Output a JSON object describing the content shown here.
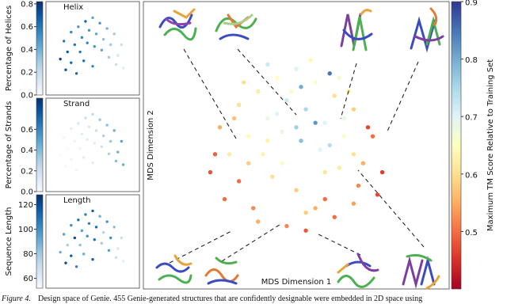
{
  "chart_data": [
    {
      "type": "scatter",
      "title": "Helix",
      "colorbar_label": "Percentage of Helices",
      "colormap": "Blues",
      "xlim": [
        -1.3,
        1.3
      ],
      "ylim": [
        -1.3,
        1.3
      ],
      "clim": [
        0,
        0.82
      ],
      "cticks": [
        {
          "value": 0,
          "label": "0.0"
        },
        0.2,
        0.4,
        0.6,
        0.8
      ],
      "x": [
        -0.8,
        -0.6,
        -0.4,
        -0.2,
        0,
        0.2,
        0.4,
        0.6,
        0.8,
        -0.7,
        -0.5,
        -0.3,
        -0.1,
        0.1,
        0.3,
        0.5,
        0.7,
        -0.9,
        -0.6,
        -0.35,
        -0.15,
        0.05,
        0.25,
        0.45,
        0.65,
        0.85,
        -0.75,
        -0.45,
        -0.25,
        0
      ],
      "y": [
        0.2,
        0.45,
        0.6,
        0.75,
        0.85,
        0.7,
        0.55,
        0.4,
        0.1,
        -0.1,
        0.1,
        0.3,
        0.5,
        0.4,
        0.25,
        0.1,
        -0.2,
        -0.3,
        -0.4,
        -0.1,
        0.15,
        0.05,
        -0.05,
        -0.25,
        -0.45,
        -0.55,
        -0.6,
        -0.7,
        -0.35,
        -0.5
      ],
      "values": [
        0.6,
        0.55,
        0.5,
        0.65,
        0.45,
        0.5,
        0.4,
        0.3,
        0.2,
        0.7,
        0.6,
        0.55,
        0.5,
        0.45,
        0.35,
        0.3,
        0.15,
        0.75,
        0.65,
        0.6,
        0.55,
        0.5,
        0.45,
        0.3,
        0.2,
        0.1,
        0.7,
        0.65,
        0.6,
        0.55
      ]
    },
    {
      "type": "scatter",
      "title": "Strand",
      "colorbar_label": "Percentage of Strands",
      "colormap": "Blues",
      "xlim": [
        -1.3,
        1.3
      ],
      "ylim": [
        -1.3,
        1.3
      ],
      "clim": [
        0,
        0.9
      ],
      "cticks": [
        {
          "value": 0,
          "label": "0.0"
        },
        0.2,
        0.4,
        0.6
      ],
      "x": [
        -0.8,
        -0.6,
        -0.4,
        -0.2,
        0,
        0.2,
        0.4,
        0.6,
        0.8,
        -0.7,
        -0.5,
        -0.3,
        -0.1,
        0.1,
        0.3,
        0.5,
        0.7,
        -0.9,
        -0.6,
        -0.35,
        -0.15,
        0.05,
        0.25,
        0.45,
        0.65,
        0.85,
        -0.75,
        -0.45,
        -0.25,
        0
      ],
      "y": [
        0.2,
        0.45,
        0.6,
        0.75,
        0.85,
        0.7,
        0.55,
        0.4,
        0.1,
        -0.1,
        0.1,
        0.3,
        0.5,
        0.4,
        0.25,
        0.1,
        -0.2,
        -0.3,
        -0.4,
        -0.1,
        0.15,
        0.05,
        -0.05,
        -0.25,
        -0.45,
        -0.55,
        -0.6,
        -0.7,
        -0.35,
        -0.5
      ],
      "values": [
        0.05,
        0.1,
        0.15,
        0.2,
        0.25,
        0.35,
        0.4,
        0.45,
        0.5,
        0.0,
        0.05,
        0.1,
        0.15,
        0.2,
        0.3,
        0.35,
        0.45,
        0.0,
        0.05,
        0.05,
        0.1,
        0.1,
        0.2,
        0.3,
        0.4,
        0.45,
        0.02,
        0.05,
        0.1,
        0.1
      ]
    },
    {
      "type": "scatter",
      "title": "Length",
      "colorbar_label": "Sequence Length",
      "colormap": "Blues",
      "xlim": [
        -1.3,
        1.3
      ],
      "ylim": [
        -1.3,
        1.3
      ],
      "clim": [
        52,
        128
      ],
      "cticks": [
        60,
        80,
        100,
        120
      ],
      "x": [
        -0.8,
        -0.6,
        -0.4,
        -0.2,
        0,
        0.2,
        0.4,
        0.6,
        0.8,
        -0.7,
        -0.5,
        -0.3,
        -0.1,
        0.1,
        0.3,
        0.5,
        0.7,
        -0.9,
        -0.6,
        -0.35,
        -0.15,
        0.05,
        0.25,
        0.45,
        0.65,
        0.85,
        -0.75,
        -0.45,
        -0.25,
        0
      ],
      "y": [
        0.2,
        0.45,
        0.6,
        0.75,
        0.85,
        0.7,
        0.55,
        0.4,
        0.1,
        -0.1,
        0.1,
        0.3,
        0.5,
        0.4,
        0.25,
        0.1,
        -0.2,
        -0.3,
        -0.4,
        -0.1,
        0.15,
        0.05,
        -0.05,
        -0.25,
        -0.45,
        -0.55,
        -0.6,
        -0.7,
        -0.35,
        -0.5
      ],
      "values": [
        95,
        100,
        110,
        105,
        115,
        90,
        100,
        85,
        70,
        80,
        120,
        95,
        105,
        110,
        75,
        100,
        65,
        90,
        115,
        85,
        100,
        110,
        80,
        95,
        70,
        60,
        120,
        105,
        90,
        115
      ]
    },
    {
      "type": "scatter",
      "xlabel": "MDS Dimension 1",
      "ylabel": "MDS Dimension 2",
      "colorbar_label": "Maximum TM Score Relative to Training Set",
      "colormap": "RdYlBu",
      "xlim": [
        -1.6,
        1.6
      ],
      "ylim": [
        -1.6,
        1.6
      ],
      "clim": [
        0.4,
        0.9
      ],
      "cticks": [
        0.5,
        0.6,
        0.7,
        0.8,
        0.9
      ],
      "x": [
        -0.8,
        -0.6,
        -0.4,
        -0.2,
        0,
        0.2,
        0.4,
        0.6,
        0.8,
        -0.7,
        -0.5,
        -0.3,
        -0.1,
        0.1,
        0.3,
        0.5,
        0.7,
        -0.9,
        -0.6,
        -0.35,
        -0.15,
        0.05,
        0.25,
        0.45,
        0.65,
        0.85,
        -0.75,
        -0.45,
        -0.25,
        0,
        0.2,
        0.4,
        0.6,
        -0.55,
        -0.3,
        -0.05,
        0.15,
        0.35,
        0.55,
        -0.4,
        -0.1,
        0.1,
        0.3,
        -0.2,
        0.05,
        0.5,
        -0.65,
        0.75,
        0.9,
        -0.85,
        0.1,
        -0.15,
        0.35,
        0.6,
        -0.5,
        0.2,
        0,
        -0.3,
        0.45,
        0.3
      ],
      "y": [
        0.2,
        0.45,
        0.6,
        0.75,
        0.85,
        0.7,
        0.55,
        0.4,
        0.1,
        -0.1,
        0.1,
        0.3,
        0.5,
        0.4,
        0.25,
        0.1,
        -0.2,
        -0.3,
        -0.4,
        -0.1,
        0.15,
        0.05,
        -0.05,
        -0.25,
        -0.45,
        -0.55,
        -0.6,
        -0.7,
        -0.35,
        -0.5,
        -0.7,
        -0.8,
        -0.65,
        0.7,
        0.9,
        0.6,
        0.95,
        0.8,
        0.6,
        -0.85,
        -0.9,
        -0.75,
        -0.6,
        0.35,
        0.65,
        0.3,
        0.3,
        0.2,
        -0.3,
        -0.1,
        -0.95,
        -0.2,
        0.0,
        -0.1,
        -0.2,
        0.25,
        0.2,
        0.05,
        0.75,
        -0.3
      ],
      "values": [
        0.55,
        0.6,
        0.62,
        0.65,
        0.7,
        0.66,
        0.6,
        0.58,
        0.5,
        0.62,
        0.64,
        0.68,
        0.72,
        0.75,
        0.7,
        0.66,
        0.55,
        0.48,
        0.5,
        0.63,
        0.68,
        0.78,
        0.7,
        0.62,
        0.52,
        0.47,
        0.5,
        0.52,
        0.6,
        0.58,
        0.55,
        0.5,
        0.54,
        0.6,
        0.72,
        0.66,
        0.64,
        0.85,
        0.62,
        0.55,
        0.52,
        0.58,
        0.5,
        0.7,
        0.8,
        0.68,
        0.57,
        0.47,
        0.46,
        0.49,
        0.48,
        0.66,
        0.74,
        0.6,
        0.58,
        0.82,
        0.76,
        0.63,
        0.67,
        0.61
      ]
    }
  ],
  "caption": {
    "label": "Figure 4.",
    "text": "Design space of Genie. 455 Genie-generated structures that are confidently designable were embedded in 2D space using"
  }
}
